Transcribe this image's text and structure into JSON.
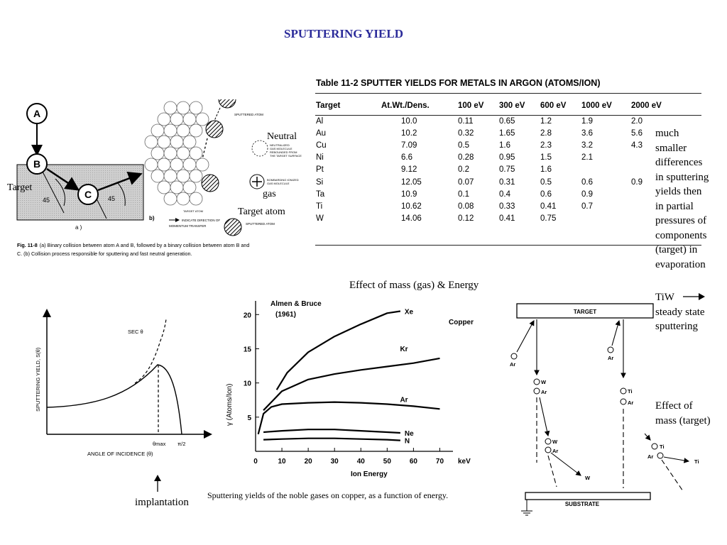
{
  "page_title": "SPUTTERING YIELD",
  "collision_figure": {
    "node_a": "A",
    "node_b": "B",
    "node_c": "C",
    "angle_1": "45",
    "angle_2": "45",
    "panel_a": "a )",
    "panel_b": "b)",
    "sputtered_atom": "SPUTTERED ATOM",
    "neutralized_molecule_lines": [
      "NEUTRALIZED",
      "GAS MOLECULE",
      "REBOUNDED FROM",
      "THE TARGET SURFACE"
    ],
    "bombarding_molecule_lines": [
      "BOMBARDING IONIZED",
      "GAS MOLECULE"
    ],
    "target_atom_label": "TARGET ATOM",
    "arrow_legend_lines": [
      "INDICATE DIRECTION OF",
      "MOMENTUM TRANSFER"
    ],
    "sputtered_atom_2": "SPUTTERED ATOM",
    "caption_fig": "Fig. 11-8",
    "caption_text": "(a) Binary collision between atom A and B, followed by a binary collision between atom B and",
    "caption_text_2": "C. (b) Collision process responsible for sputtering and fast neutral generation."
  },
  "annotations": {
    "target": "Target",
    "neutral": "Neutral",
    "gas": "gas",
    "target_atom": "Target atom",
    "mass_energy": "Effect of mass (gas) & Energy",
    "implantation": "implantation",
    "evaporation_lines": [
      "much",
      "smaller",
      "differences",
      "in sputtering",
      "yields then",
      "in partial",
      "pressures of",
      "components",
      "(target) in",
      "evaporation"
    ],
    "tiw_lines": [
      "TiW",
      "steady state",
      "sputtering"
    ],
    "mass_target_lines": [
      "Effect of",
      "mass (target)"
    ]
  },
  "table": {
    "title": "Table 11-2 SPUTTER YIELDS FOR METALS IN ARGON (ATOMS/ION)",
    "headers": [
      "Target",
      "At.Wt./Dens.",
      "100 eV",
      "300 eV",
      "600 eV",
      "1000 eV",
      "2000 eV"
    ],
    "rows": [
      [
        "Al",
        "10.0",
        "0.11",
        "0.65",
        "1.2",
        "1.9",
        "2.0"
      ],
      [
        "Au",
        "10.2",
        "0.32",
        "1.65",
        "2.8",
        "3.6",
        "5.6"
      ],
      [
        "Cu",
        "7.09",
        "0.5",
        "1.6",
        "2.3",
        "3.2",
        "4.3"
      ],
      [
        "Ni",
        "6.6",
        "0.28",
        "0.95",
        "1.5",
        "2.1",
        ""
      ],
      [
        "Pt",
        "9.12",
        "0.2",
        "0.75",
        "1.6",
        "",
        ""
      ],
      [
        "Si",
        "12.05",
        "0.07",
        "0.31",
        "0.5",
        "0.6",
        "0.9"
      ],
      [
        "Ta",
        "10.9",
        "0.1",
        "0.4",
        "0.6",
        "0.9",
        ""
      ],
      [
        "Ti",
        "10.62",
        "0.08",
        "0.33",
        "0.41",
        "0.7",
        ""
      ],
      [
        "W",
        "14.06",
        "0.12",
        "0.41",
        "0.75",
        "",
        ""
      ]
    ]
  },
  "angle_plot": {
    "ylabel": "SPUTTERING YIELD, S(θ)",
    "xlabel": "ANGLE OF INCIDENCE (θ)",
    "sec_label": "SEC θ",
    "theta_max": "θmax",
    "pi_half": "π/2"
  },
  "chart_data": {
    "type": "line",
    "title": "Almen & Bruce",
    "subtitle": "(1961)",
    "annotation": "Copper",
    "xlabel": "Ion Energy",
    "xunit": "keV",
    "ylabel": "γ (Atoms/Ion)",
    "xlim": [
      0,
      75
    ],
    "ylim": [
      0,
      22
    ],
    "xticks": [
      0,
      10,
      20,
      30,
      40,
      50,
      60,
      70
    ],
    "yticks": [
      5,
      10,
      15,
      20
    ],
    "caption": "Sputtering yields of the noble gases on copper, as a function of energy.",
    "grid": false,
    "series": [
      {
        "name": "Xe",
        "x": [
          8,
          12,
          20,
          30,
          40,
          50,
          55
        ],
        "y": [
          9,
          11.5,
          14.5,
          16.8,
          18.6,
          20.2,
          20.5
        ]
      },
      {
        "name": "Kr",
        "x": [
          3,
          10,
          20,
          30,
          40,
          50,
          60,
          70
        ],
        "y": [
          6,
          8.8,
          10.5,
          11.3,
          11.9,
          12.4,
          12.9,
          13.6
        ]
      },
      {
        "name": "Ar",
        "x": [
          1,
          3,
          6,
          10,
          20,
          30,
          40,
          50,
          60,
          70
        ],
        "y": [
          2.5,
          5.5,
          6.5,
          6.9,
          7.1,
          7.2,
          7.1,
          6.9,
          6.6,
          6.2
        ]
      },
      {
        "name": "Ne",
        "x": [
          3,
          10,
          20,
          30,
          40,
          50,
          55
        ],
        "y": [
          2.8,
          3.0,
          3.2,
          3.2,
          3.0,
          2.8,
          2.7
        ]
      },
      {
        "name": "N",
        "x": [
          3,
          10,
          20,
          30,
          40,
          50,
          55
        ],
        "y": [
          1.7,
          1.8,
          1.9,
          1.9,
          1.8,
          1.7,
          1.6
        ]
      }
    ]
  },
  "schematic": {
    "target_label": "TARGET",
    "substrate_label": "SUBSTRATE",
    "ar": "Ar",
    "w": "W",
    "ti": "Ti"
  },
  "colors": {
    "title": "#2b2b9a"
  }
}
